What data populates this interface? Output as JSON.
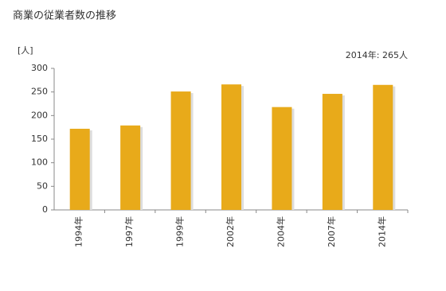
{
  "chart_data": {
    "type": "bar",
    "title": "商業の従業者数の推移",
    "y_unit": "[人]",
    "annotation": "2014年: 265人",
    "categories": [
      "1994年",
      "1997年",
      "1999年",
      "2002年",
      "2004年",
      "2007年",
      "2014年"
    ],
    "values": [
      172,
      179,
      251,
      266,
      218,
      246,
      265
    ],
    "color": "#e8aa1a",
    "ylim": [
      0,
      300
    ],
    "yticks": [
      0,
      50,
      100,
      150,
      200,
      250,
      300
    ],
    "grid": false
  }
}
